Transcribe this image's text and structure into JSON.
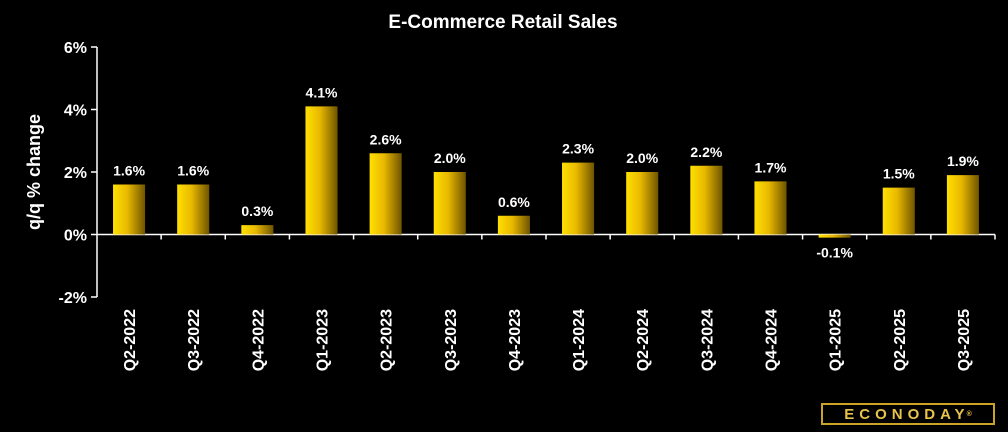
{
  "chart_data": {
    "type": "bar",
    "title": "E-Commerce Retail Sales",
    "ylabel": "q/q % change",
    "xlabel": "",
    "ylim": [
      -2,
      6
    ],
    "yticks": [
      "-2%",
      "0%",
      "2%",
      "4%",
      "6%"
    ],
    "ytick_values": [
      -2,
      0,
      2,
      4,
      6
    ],
    "grid": false,
    "categories": [
      "Q2-2022",
      "Q3-2022",
      "Q4-2022",
      "Q1-2023",
      "Q2-2023",
      "Q3-2023",
      "Q4-2023",
      "Q1-2024",
      "Q2-2024",
      "Q3-2024",
      "Q4-2024",
      "Q1-2025",
      "Q2-2025",
      "Q3-2025"
    ],
    "values": [
      1.6,
      1.6,
      0.3,
      4.1,
      2.6,
      2.0,
      0.6,
      2.3,
      2.0,
      2.2,
      1.7,
      -0.1,
      1.5,
      1.9
    ],
    "data_labels": [
      "1.6%",
      "1.6%",
      "0.3%",
      "4.1%",
      "2.6%",
      "2.0%",
      "0.6%",
      "2.3%",
      "2.0%",
      "2.2%",
      "1.7%",
      "-0.1%",
      "1.5%",
      "1.9%"
    ],
    "colors": {
      "background": "#000000",
      "bar_light": "#ffd600",
      "bar_dark": "#6e5400",
      "text": "#ffffff",
      "axis": "#ffffff"
    }
  },
  "logo": {
    "text": "ECONODAY",
    "mark": "®"
  }
}
